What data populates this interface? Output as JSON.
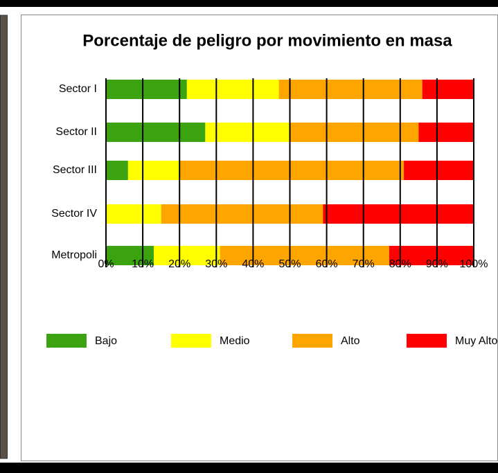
{
  "chart_data": {
    "type": "stacked-barh",
    "title": "Porcentaje de peligro por movimiento en masa",
    "categories": [
      "Sector I",
      "Sector II",
      "Sector III",
      "Sector IV",
      "Metropoli"
    ],
    "series": [
      {
        "name": "Bajo",
        "color": "#3aa30f",
        "values": [
          22,
          27,
          6,
          0,
          13
        ]
      },
      {
        "name": "Medio",
        "color": "#ffff00",
        "values": [
          25,
          23,
          14,
          15,
          18
        ]
      },
      {
        "name": "Alto",
        "color": "#ffa500",
        "values": [
          39,
          35,
          61,
          44,
          46
        ]
      },
      {
        "name": "Muy Alto",
        "color": "#ff0000",
        "values": [
          14,
          15,
          19,
          41,
          23
        ]
      }
    ],
    "xlim": [
      0,
      100
    ],
    "xticks": [
      {
        "value": 0,
        "label": "0%"
      },
      {
        "value": 10,
        "label": "10%"
      },
      {
        "value": 20,
        "label": "20%"
      },
      {
        "value": 30,
        "label": "30%"
      },
      {
        "value": 40,
        "label": "40%"
      },
      {
        "value": 50,
        "label": "50%"
      },
      {
        "value": 60,
        "label": "60%"
      },
      {
        "value": 70,
        "label": "70%"
      },
      {
        "value": 80,
        "label": "80%"
      },
      {
        "value": 90,
        "label": "90%"
      },
      {
        "value": 100,
        "label": "100%"
      }
    ],
    "grid": true
  }
}
